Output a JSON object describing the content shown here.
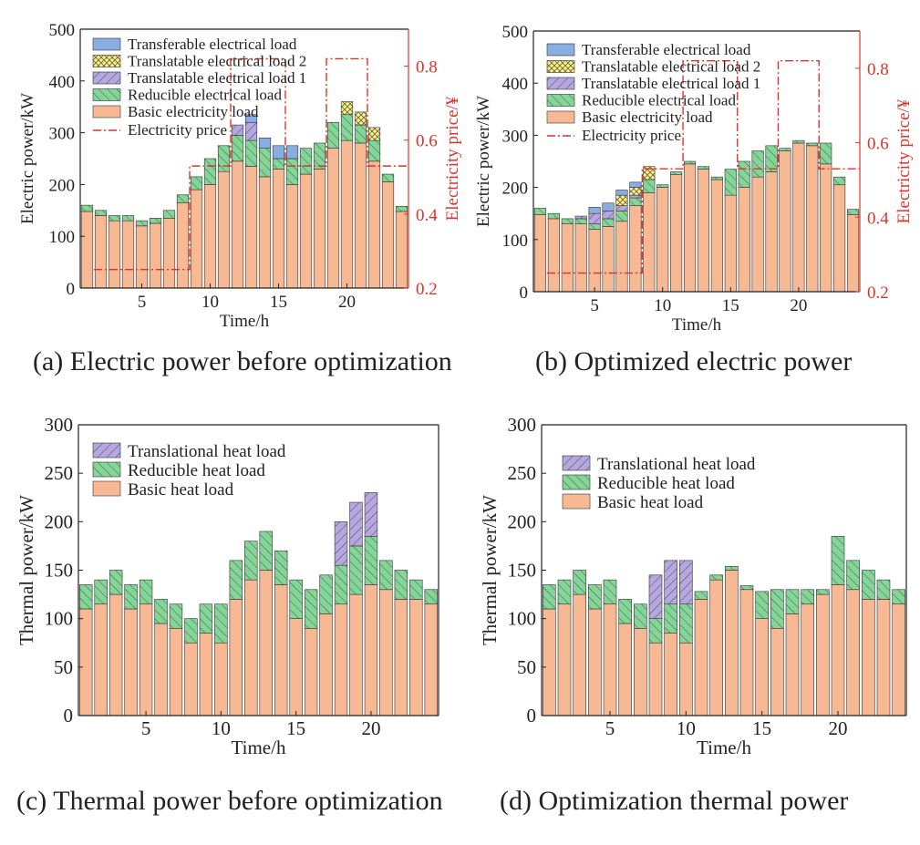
{
  "captions": {
    "a": "(a) Electric power before optimization",
    "b": "(b) Optimized electric power",
    "c": "(c) Thermal power before optimization",
    "d": "(d) Optimization thermal power"
  },
  "colors": {
    "basic": "#f7b894",
    "reducible": "#86d49a",
    "translatable1": "#b6a8dc",
    "translatable2": "#f7ee96",
    "transferable": "#88aee2",
    "price": "#e0322a",
    "axis": "#222222"
  },
  "chart_data": [
    {
      "id": "a",
      "type": "bar",
      "stacked": true,
      "xlabel": "Time/h",
      "ylabel": "Electric power/kW",
      "y2label": "Electricity price/¥",
      "ylim": [
        0,
        500
      ],
      "y2lim": [
        0.2,
        0.9
      ],
      "yticks": [
        0,
        100,
        200,
        300,
        400,
        500
      ],
      "y2ticks": [
        0.2,
        0.4,
        0.6,
        0.8
      ],
      "xticks": [
        5,
        10,
        15,
        20
      ],
      "legend_position": "top-left",
      "x": [
        1,
        2,
        3,
        4,
        5,
        6,
        7,
        8,
        9,
        10,
        11,
        12,
        13,
        14,
        15,
        16,
        17,
        18,
        19,
        20,
        21,
        22,
        23,
        24
      ],
      "series": [
        {
          "name": "Basic electricity load",
          "key": "basic",
          "values": [
            148,
            140,
            130,
            130,
            120,
            125,
            135,
            165,
            190,
            200,
            225,
            245,
            235,
            215,
            230,
            200,
            220,
            230,
            270,
            285,
            280,
            245,
            205,
            148
          ]
        },
        {
          "name": "Reducible electrical load",
          "key": "reducible",
          "values": [
            12,
            10,
            10,
            10,
            10,
            10,
            15,
            15,
            25,
            50,
            50,
            50,
            50,
            55,
            20,
            50,
            50,
            50,
            50,
            50,
            35,
            40,
            15,
            10
          ]
        },
        {
          "name": "Translatable electrical load 1",
          "key": "translatable1",
          "values": [
            0,
            0,
            0,
            0,
            0,
            0,
            0,
            0,
            0,
            0,
            0,
            20,
            35,
            0,
            0,
            0,
            0,
            0,
            0,
            0,
            0,
            0,
            0,
            0
          ]
        },
        {
          "name": "Translatable electrical load 2",
          "key": "translatable2",
          "values": [
            0,
            0,
            0,
            0,
            0,
            0,
            0,
            0,
            0,
            0,
            0,
            0,
            0,
            0,
            0,
            0,
            0,
            0,
            0,
            25,
            25,
            25,
            0,
            0
          ]
        },
        {
          "name": "Transferable electrical load",
          "key": "transferable",
          "values": [
            0,
            0,
            0,
            0,
            0,
            0,
            0,
            0,
            0,
            0,
            0,
            0,
            15,
            20,
            25,
            25,
            0,
            0,
            0,
            0,
            0,
            0,
            0,
            0
          ]
        }
      ],
      "price_series": {
        "name": "Electricity price",
        "x": [
          1,
          8,
          8,
          11,
          11,
          15,
          15,
          18,
          18,
          21,
          21,
          24
        ],
        "values": [
          0.25,
          0.25,
          0.53,
          0.53,
          0.82,
          0.82,
          0.53,
          0.53,
          0.82,
          0.82,
          0.53,
          0.53
        ]
      }
    },
    {
      "id": "b",
      "type": "bar",
      "stacked": true,
      "xlabel": "Time/h",
      "ylabel": "Electric power/kW",
      "y2label": "Electricity price/¥",
      "ylim": [
        0,
        500
      ],
      "y2lim": [
        0.2,
        0.9
      ],
      "yticks": [
        0,
        100,
        200,
        300,
        400,
        500
      ],
      "y2ticks": [
        0.2,
        0.4,
        0.6,
        0.8
      ],
      "xticks": [
        5,
        10,
        15,
        20
      ],
      "legend_position": "top-left",
      "x": [
        1,
        2,
        3,
        4,
        5,
        6,
        7,
        8,
        9,
        10,
        11,
        12,
        13,
        14,
        15,
        16,
        17,
        18,
        19,
        20,
        21,
        22,
        23,
        24
      ],
      "series": [
        {
          "name": "Basic electricity load",
          "key": "basic",
          "values": [
            148,
            140,
            130,
            130,
            120,
            125,
            135,
            165,
            190,
            200,
            225,
            245,
            235,
            215,
            185,
            200,
            220,
            230,
            270,
            285,
            280,
            245,
            205,
            148
          ]
        },
        {
          "name": "Reducible electrical load",
          "key": "reducible",
          "values": [
            12,
            10,
            10,
            10,
            10,
            15,
            20,
            15,
            25,
            5,
            5,
            5,
            5,
            5,
            50,
            50,
            50,
            50,
            5,
            5,
            5,
            40,
            15,
            10
          ]
        },
        {
          "name": "Translatable electrical load 1",
          "key": "translatable1",
          "values": [
            0,
            0,
            0,
            5,
            20,
            15,
            10,
            5,
            0,
            0,
            0,
            0,
            0,
            0,
            0,
            0,
            0,
            0,
            0,
            0,
            0,
            0,
            0,
            0
          ]
        },
        {
          "name": "Translatable electrical load 2",
          "key": "translatable2",
          "values": [
            0,
            0,
            0,
            0,
            0,
            0,
            20,
            15,
            25,
            0,
            0,
            0,
            0,
            0,
            0,
            0,
            0,
            0,
            0,
            0,
            0,
            0,
            0,
            0
          ]
        },
        {
          "name": "Transferable electrical load",
          "key": "transferable",
          "values": [
            0,
            0,
            0,
            0,
            12,
            15,
            10,
            10,
            0,
            0,
            0,
            0,
            0,
            0,
            0,
            0,
            0,
            0,
            0,
            0,
            0,
            0,
            0,
            0
          ]
        }
      ],
      "price_series": {
        "name": "Electricity price",
        "x": [
          1,
          8,
          8,
          11,
          11,
          15,
          15,
          18,
          18,
          21,
          21,
          24
        ],
        "values": [
          0.25,
          0.25,
          0.53,
          0.53,
          0.82,
          0.82,
          0.53,
          0.53,
          0.82,
          0.82,
          0.53,
          0.53
        ]
      }
    },
    {
      "id": "c",
      "type": "bar",
      "stacked": true,
      "xlabel": "Time/h",
      "ylabel": "Thermal power/kW",
      "ylim": [
        0,
        300
      ],
      "yticks": [
        0,
        50,
        100,
        150,
        200,
        250,
        300
      ],
      "xticks": [
        5,
        10,
        15,
        20
      ],
      "legend_position": "top-left",
      "x": [
        1,
        2,
        3,
        4,
        5,
        6,
        7,
        8,
        9,
        10,
        11,
        12,
        13,
        14,
        15,
        16,
        17,
        18,
        19,
        20,
        21,
        22,
        23,
        24
      ],
      "series": [
        {
          "name": "Basic heat load",
          "key": "basic",
          "values": [
            110,
            115,
            125,
            110,
            115,
            95,
            90,
            75,
            85,
            75,
            120,
            140,
            150,
            135,
            100,
            90,
            105,
            115,
            125,
            135,
            130,
            120,
            120,
            115
          ]
        },
        {
          "name": "Reducible heat load",
          "key": "reducible",
          "values": [
            25,
            25,
            25,
            25,
            25,
            25,
            25,
            25,
            30,
            40,
            40,
            40,
            40,
            35,
            40,
            40,
            40,
            40,
            50,
            50,
            30,
            30,
            20,
            15
          ]
        },
        {
          "name": "Translational heat load",
          "key": "translatable1",
          "values": [
            0,
            0,
            0,
            0,
            0,
            0,
            0,
            0,
            0,
            0,
            0,
            0,
            0,
            0,
            0,
            0,
            0,
            45,
            45,
            45,
            0,
            0,
            0,
            0
          ]
        }
      ]
    },
    {
      "id": "d",
      "type": "bar",
      "stacked": true,
      "xlabel": "Time/h",
      "ylabel": "Thermal power/kW",
      "ylim": [
        0,
        300
      ],
      "yticks": [
        0,
        50,
        100,
        150,
        200,
        250,
        300
      ],
      "xticks": [
        5,
        10,
        15,
        20
      ],
      "legend_position": "top-left",
      "x": [
        1,
        2,
        3,
        4,
        5,
        6,
        7,
        8,
        9,
        10,
        11,
        12,
        13,
        14,
        15,
        16,
        17,
        18,
        19,
        20,
        21,
        22,
        23,
        24
      ],
      "series": [
        {
          "name": "Basic heat load",
          "key": "basic",
          "values": [
            110,
            115,
            125,
            110,
            115,
            95,
            90,
            75,
            85,
            75,
            120,
            140,
            150,
            130,
            100,
            90,
            105,
            115,
            125,
            135,
            130,
            120,
            120,
            115
          ]
        },
        {
          "name": "Reducible heat load",
          "key": "reducible",
          "values": [
            25,
            25,
            25,
            25,
            25,
            25,
            25,
            25,
            30,
            40,
            8,
            5,
            4,
            4,
            28,
            40,
            25,
            15,
            5,
            50,
            30,
            30,
            20,
            15
          ]
        },
        {
          "name": "Translational heat load",
          "key": "translatable1",
          "values": [
            0,
            0,
            0,
            0,
            0,
            0,
            0,
            45,
            45,
            45,
            0,
            0,
            0,
            0,
            0,
            0,
            0,
            0,
            0,
            0,
            0,
            0,
            0,
            0
          ]
        }
      ]
    }
  ]
}
